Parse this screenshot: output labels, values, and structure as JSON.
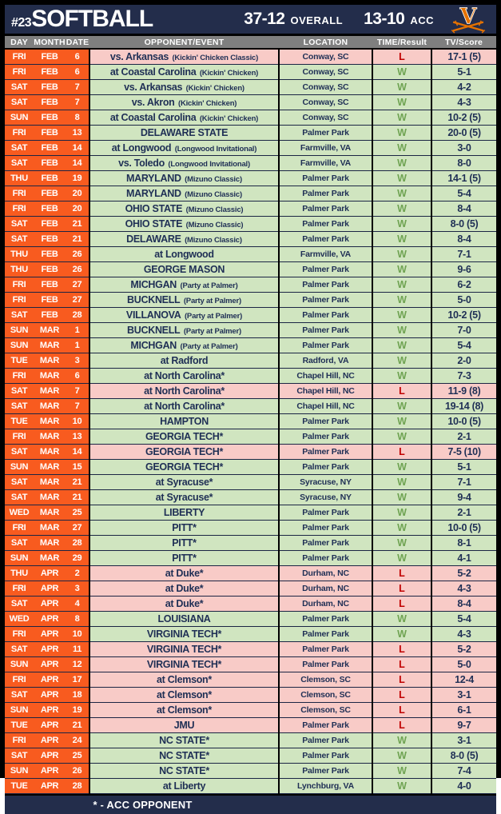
{
  "header": {
    "rank": "#23",
    "title": "SOFTBALL",
    "overall_record": "37-12",
    "overall_label": "OVERALL",
    "acc_record": "13-10",
    "acc_label": "ACC",
    "logo": "virginia-v-sabre-logo"
  },
  "columns": [
    "DAY",
    "MONTH",
    "DATE",
    "OPPONENT/EVENT",
    "LOCATION",
    "TIME/Result",
    "TV/Score"
  ],
  "colors": {
    "navy": "#232D4B",
    "orange": "#F85B1F",
    "win_row": "#D0E5C0",
    "loss_row": "#F8CBC7",
    "win_text": "#6FA352",
    "loss_text": "#C00000",
    "header_gray": "#7F7F7F",
    "cell_text_navy": "#1F2F55",
    "logo_orange": "#E57200"
  },
  "schedule": {
    "rows": [
      {
        "day": "FRI",
        "month": "FEB",
        "date": "6",
        "opponent": "vs. Arkansas",
        "event": "(Kickin' Chicken Classic)",
        "location": "Conway, SC",
        "result": "L",
        "score": "17-1 (5)"
      },
      {
        "day": "FRI",
        "month": "FEB",
        "date": "6",
        "opponent": "at Coastal Carolina",
        "event": "(Kickin' Chicken)",
        "location": "Conway, SC",
        "result": "W",
        "score": "5-1"
      },
      {
        "day": "SAT",
        "month": "FEB",
        "date": "7",
        "opponent": "vs. Arkansas",
        "event": "(Kickin' Chicken)",
        "location": "Conway, SC",
        "result": "W",
        "score": "4-2"
      },
      {
        "day": "SAT",
        "month": "FEB",
        "date": "7",
        "opponent": "vs. Akron",
        "event": "(Kickin' Chicken)",
        "location": "Conway, SC",
        "result": "W",
        "score": "4-3"
      },
      {
        "day": "SUN",
        "month": "FEB",
        "date": "8",
        "opponent": "at Coastal Carolina",
        "event": "(Kickin' Chicken)",
        "location": "Conway, SC",
        "result": "W",
        "score": "10-2 (5)"
      },
      {
        "day": "FRI",
        "month": "FEB",
        "date": "13",
        "opponent": "DELAWARE STATE",
        "event": "",
        "location": "Palmer Park",
        "result": "W",
        "score": "20-0 (5)"
      },
      {
        "day": "SAT",
        "month": "FEB",
        "date": "14",
        "opponent": "at Longwood",
        "event": "(Longwood Invitational)",
        "location": "Farmville, VA",
        "result": "W",
        "score": "3-0"
      },
      {
        "day": "SAT",
        "month": "FEB",
        "date": "14",
        "opponent": "vs. Toledo",
        "event": "(Longwood Invitational)",
        "location": "Farmville, VA",
        "result": "W",
        "score": "8-0"
      },
      {
        "day": "THU",
        "month": "FEB",
        "date": "19",
        "opponent": "MARYLAND",
        "event": "(Mizuno Classic)",
        "location": "Palmer Park",
        "result": "W",
        "score": "14-1 (5)"
      },
      {
        "day": "FRI",
        "month": "FEB",
        "date": "20",
        "opponent": "MARYLAND",
        "event": "(Mizuno Classic)",
        "location": "Palmer Park",
        "result": "W",
        "score": "5-4"
      },
      {
        "day": "FRI",
        "month": "FEB",
        "date": "20",
        "opponent": "OHIO STATE",
        "event": "(Mizuno Classic)",
        "location": "Palmer Park",
        "result": "W",
        "score": "8-4"
      },
      {
        "day": "SAT",
        "month": "FEB",
        "date": "21",
        "opponent": "OHIO STATE",
        "event": "(Mizuno Classic)",
        "location": "Palmer Park",
        "result": "W",
        "score": "8-0 (5)"
      },
      {
        "day": "SAT",
        "month": "FEB",
        "date": "21",
        "opponent": "DELAWARE",
        "event": "(Mizuno Classic)",
        "location": "Palmer Park",
        "result": "W",
        "score": "8-4"
      },
      {
        "day": "THU",
        "month": "FEB",
        "date": "26",
        "opponent": "at Longwood",
        "event": "",
        "location": "Farmville, VA",
        "result": "W",
        "score": "7-1"
      },
      {
        "day": "THU",
        "month": "FEB",
        "date": "26",
        "opponent": "GEORGE MASON",
        "event": "",
        "location": "Palmer Park",
        "result": "W",
        "score": "9-6"
      },
      {
        "day": "FRI",
        "month": "FEB",
        "date": "27",
        "opponent": "MICHGAN",
        "event": "(Party at Palmer)",
        "location": "Palmer Park",
        "result": "W",
        "score": "6-2"
      },
      {
        "day": "FRI",
        "month": "FEB",
        "date": "27",
        "opponent": "BUCKNELL",
        "event": "(Party at Palmer)",
        "location": "Palmer Park",
        "result": "W",
        "score": "5-0"
      },
      {
        "day": "SAT",
        "month": "FEB",
        "date": "28",
        "opponent": "VILLANOVA",
        "event": "(Party at Palmer)",
        "location": "Palmer Park",
        "result": "W",
        "score": "10-2 (5)"
      },
      {
        "day": "SUN",
        "month": "MAR",
        "date": "1",
        "opponent": "BUCKNELL",
        "event": "(Party at Palmer)",
        "location": "Palmer Park",
        "result": "W",
        "score": "7-0"
      },
      {
        "day": "SUN",
        "month": "MAR",
        "date": "1",
        "opponent": "MICHGAN",
        "event": "(Party at Palmer)",
        "location": "Palmer Park",
        "result": "W",
        "score": "5-4"
      },
      {
        "day": "TUE",
        "month": "MAR",
        "date": "3",
        "opponent": "at Radford",
        "event": "",
        "location": "Radford, VA",
        "result": "W",
        "score": "2-0"
      },
      {
        "day": "FRI",
        "month": "MAR",
        "date": "6",
        "opponent": "at North Carolina*",
        "event": "",
        "location": "Chapel Hill, NC",
        "result": "W",
        "score": "7-3"
      },
      {
        "day": "SAT",
        "month": "MAR",
        "date": "7",
        "opponent": "at North Carolina*",
        "event": "",
        "location": "Chapel Hill, NC",
        "result": "L",
        "score": "11-9 (8)"
      },
      {
        "day": "SAT",
        "month": "MAR",
        "date": "7",
        "opponent": "at North Carolina*",
        "event": "",
        "location": "Chapel Hill, NC",
        "result": "W",
        "score": "19-14 (8)"
      },
      {
        "day": "TUE",
        "month": "MAR",
        "date": "10",
        "opponent": "HAMPTON",
        "event": "",
        "location": "Palmer Park",
        "result": "W",
        "score": "10-0 (5)"
      },
      {
        "day": "FRI",
        "month": "MAR",
        "date": "13",
        "opponent": "GEORGIA TECH*",
        "event": "",
        "location": "Palmer Park",
        "result": "W",
        "score": "2-1"
      },
      {
        "day": "SAT",
        "month": "MAR",
        "date": "14",
        "opponent": "GEORGIA TECH*",
        "event": "",
        "location": "Palmer Park",
        "result": "L",
        "score": "7-5 (10)"
      },
      {
        "day": "SUN",
        "month": "MAR",
        "date": "15",
        "opponent": "GEORGIA TECH*",
        "event": "",
        "location": "Palmer Park",
        "result": "W",
        "score": "5-1"
      },
      {
        "day": "SAT",
        "month": "MAR",
        "date": "21",
        "opponent": "at Syracuse*",
        "event": "",
        "location": "Syracuse, NY",
        "result": "W",
        "score": "7-1"
      },
      {
        "day": "SAT",
        "month": "MAR",
        "date": "21",
        "opponent": "at Syracuse*",
        "event": "",
        "location": "Syracuse, NY",
        "result": "W",
        "score": "9-4"
      },
      {
        "day": "WED",
        "month": "MAR",
        "date": "25",
        "opponent": "LIBERTY",
        "event": "",
        "location": "Palmer Park",
        "result": "W",
        "score": "2-1"
      },
      {
        "day": "FRI",
        "month": "MAR",
        "date": "27",
        "opponent": "PITT*",
        "event": "",
        "location": "Palmer Park",
        "result": "W",
        "score": "10-0 (5)"
      },
      {
        "day": "SAT",
        "month": "MAR",
        "date": "28",
        "opponent": "PITT*",
        "event": "",
        "location": "Palmer Park",
        "result": "W",
        "score": "8-1"
      },
      {
        "day": "SUN",
        "month": "MAR",
        "date": "29",
        "opponent": "PITT*",
        "event": "",
        "location": "Palmer Park",
        "result": "W",
        "score": "4-1"
      },
      {
        "day": "THU",
        "month": "APR",
        "date": "2",
        "opponent": "at Duke*",
        "event": "",
        "location": "Durham, NC",
        "result": "L",
        "score": "5-2"
      },
      {
        "day": "FRI",
        "month": "APR",
        "date": "3",
        "opponent": "at Duke*",
        "event": "",
        "location": "Durham, NC",
        "result": "L",
        "score": "4-3"
      },
      {
        "day": "SAT",
        "month": "APR",
        "date": "4",
        "opponent": "at Duke*",
        "event": "",
        "location": "Durham, NC",
        "result": "L",
        "score": "8-4"
      },
      {
        "day": "WED",
        "month": "APR",
        "date": "8",
        "opponent": "LOUISIANA",
        "event": "",
        "location": "Palmer Park",
        "result": "W",
        "score": "5-4"
      },
      {
        "day": "FRI",
        "month": "APR",
        "date": "10",
        "opponent": "VIRGINIA TECH*",
        "event": "",
        "location": "Palmer Park",
        "result": "W",
        "score": "4-3"
      },
      {
        "day": "SAT",
        "month": "APR",
        "date": "11",
        "opponent": "VIRGINIA TECH*",
        "event": "",
        "location": "Palmer Park",
        "result": "L",
        "score": "5-2"
      },
      {
        "day": "SUN",
        "month": "APR",
        "date": "12",
        "opponent": "VIRGINIA TECH*",
        "event": "",
        "location": "Palmer Park",
        "result": "L",
        "score": "5-0"
      },
      {
        "day": "FRI",
        "month": "APR",
        "date": "17",
        "opponent": "at Clemson*",
        "event": "",
        "location": "Clemson, SC",
        "result": "L",
        "score": "12-4"
      },
      {
        "day": "SAT",
        "month": "APR",
        "date": "18",
        "opponent": "at Clemson*",
        "event": "",
        "location": "Clemson, SC",
        "result": "L",
        "score": "3-1"
      },
      {
        "day": "SUN",
        "month": "APR",
        "date": "19",
        "opponent": "at Clemson*",
        "event": "",
        "location": "Clemson, SC",
        "result": "L",
        "score": "6-1"
      },
      {
        "day": "TUE",
        "month": "APR",
        "date": "21",
        "opponent": "JMU",
        "event": "",
        "location": "Palmer Park",
        "result": "L",
        "score": "9-7"
      },
      {
        "day": "FRI",
        "month": "APR",
        "date": "24",
        "opponent": "NC STATE*",
        "event": "",
        "location": "Palmer Park",
        "result": "W",
        "score": "3-1"
      },
      {
        "day": "SAT",
        "month": "APR",
        "date": "25",
        "opponent": "NC STATE*",
        "event": "",
        "location": "Palmer Park",
        "result": "W",
        "score": "8-0 (5)"
      },
      {
        "day": "SUN",
        "month": "APR",
        "date": "26",
        "opponent": "NC STATE*",
        "event": "",
        "location": "Palmer Park",
        "result": "W",
        "score": "7-4"
      },
      {
        "day": "TUE",
        "month": "APR",
        "date": "28",
        "opponent": "at Liberty",
        "event": "",
        "location": "Lynchburg, VA",
        "result": "W",
        "score": "4-0"
      }
    ]
  },
  "footer": {
    "note": "* - ACC OPPONENT"
  }
}
